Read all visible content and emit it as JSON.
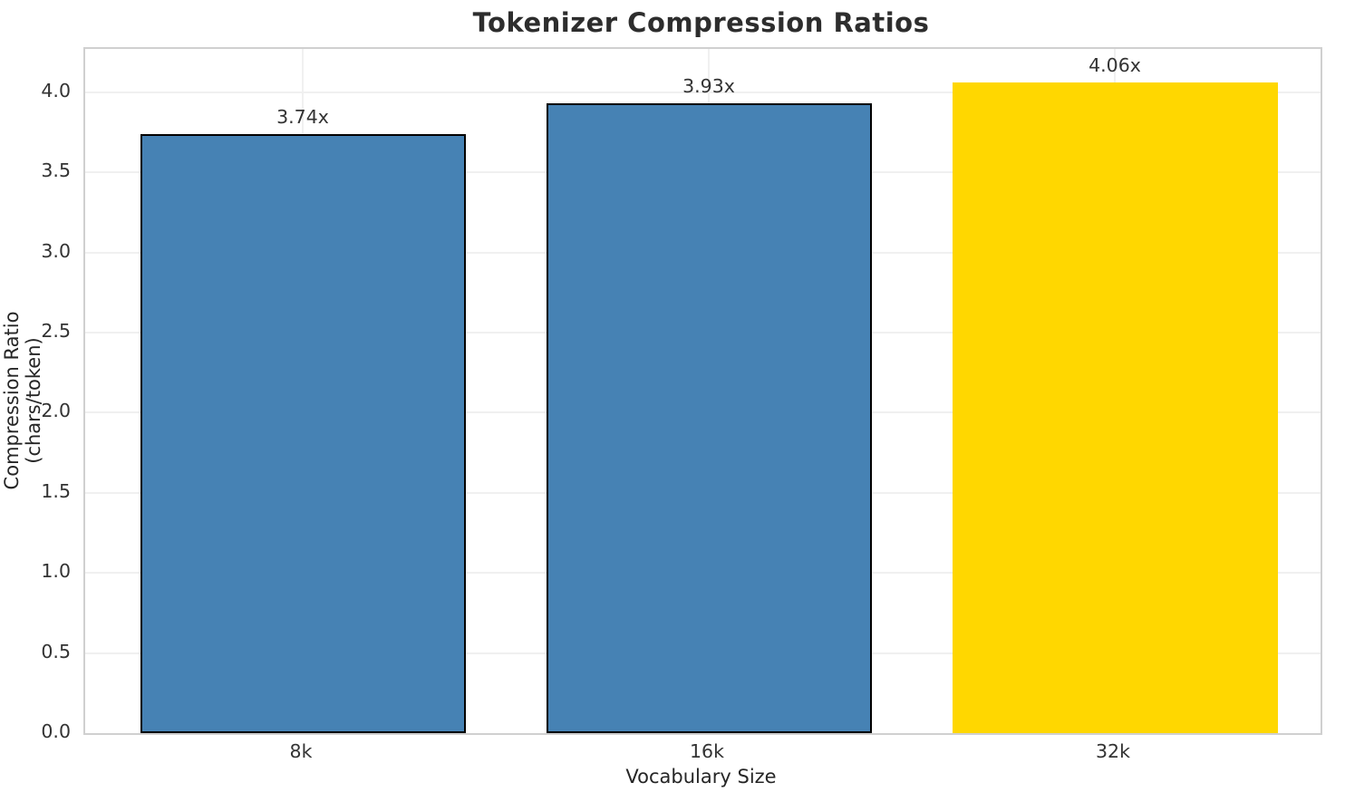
{
  "chart_data": {
    "type": "bar",
    "title": "Tokenizer Compression Ratios",
    "xlabel": "Vocabulary Size",
    "ylabel": "Compression Ratio (chars/token)",
    "categories": [
      "8k",
      "16k",
      "32k"
    ],
    "values": [
      3.74,
      3.93,
      4.06
    ],
    "bar_labels": [
      "3.74x",
      "3.93x",
      "4.06x"
    ],
    "bar_colors": [
      "#4682B4",
      "#4682B4",
      "#FFD700"
    ],
    "bar_edge_colors": [
      "#000000",
      "#000000",
      "#FFD700"
    ],
    "default_bar_color": "#4682B4",
    "highlight_bar_color": "#FFD700",
    "y_ticks": [
      "0.0",
      "0.5",
      "1.0",
      "1.5",
      "2.0",
      "2.5",
      "3.0",
      "3.5",
      "4.0"
    ],
    "ylim": [
      0,
      4.27
    ],
    "grid": true,
    "legend": "none"
  }
}
